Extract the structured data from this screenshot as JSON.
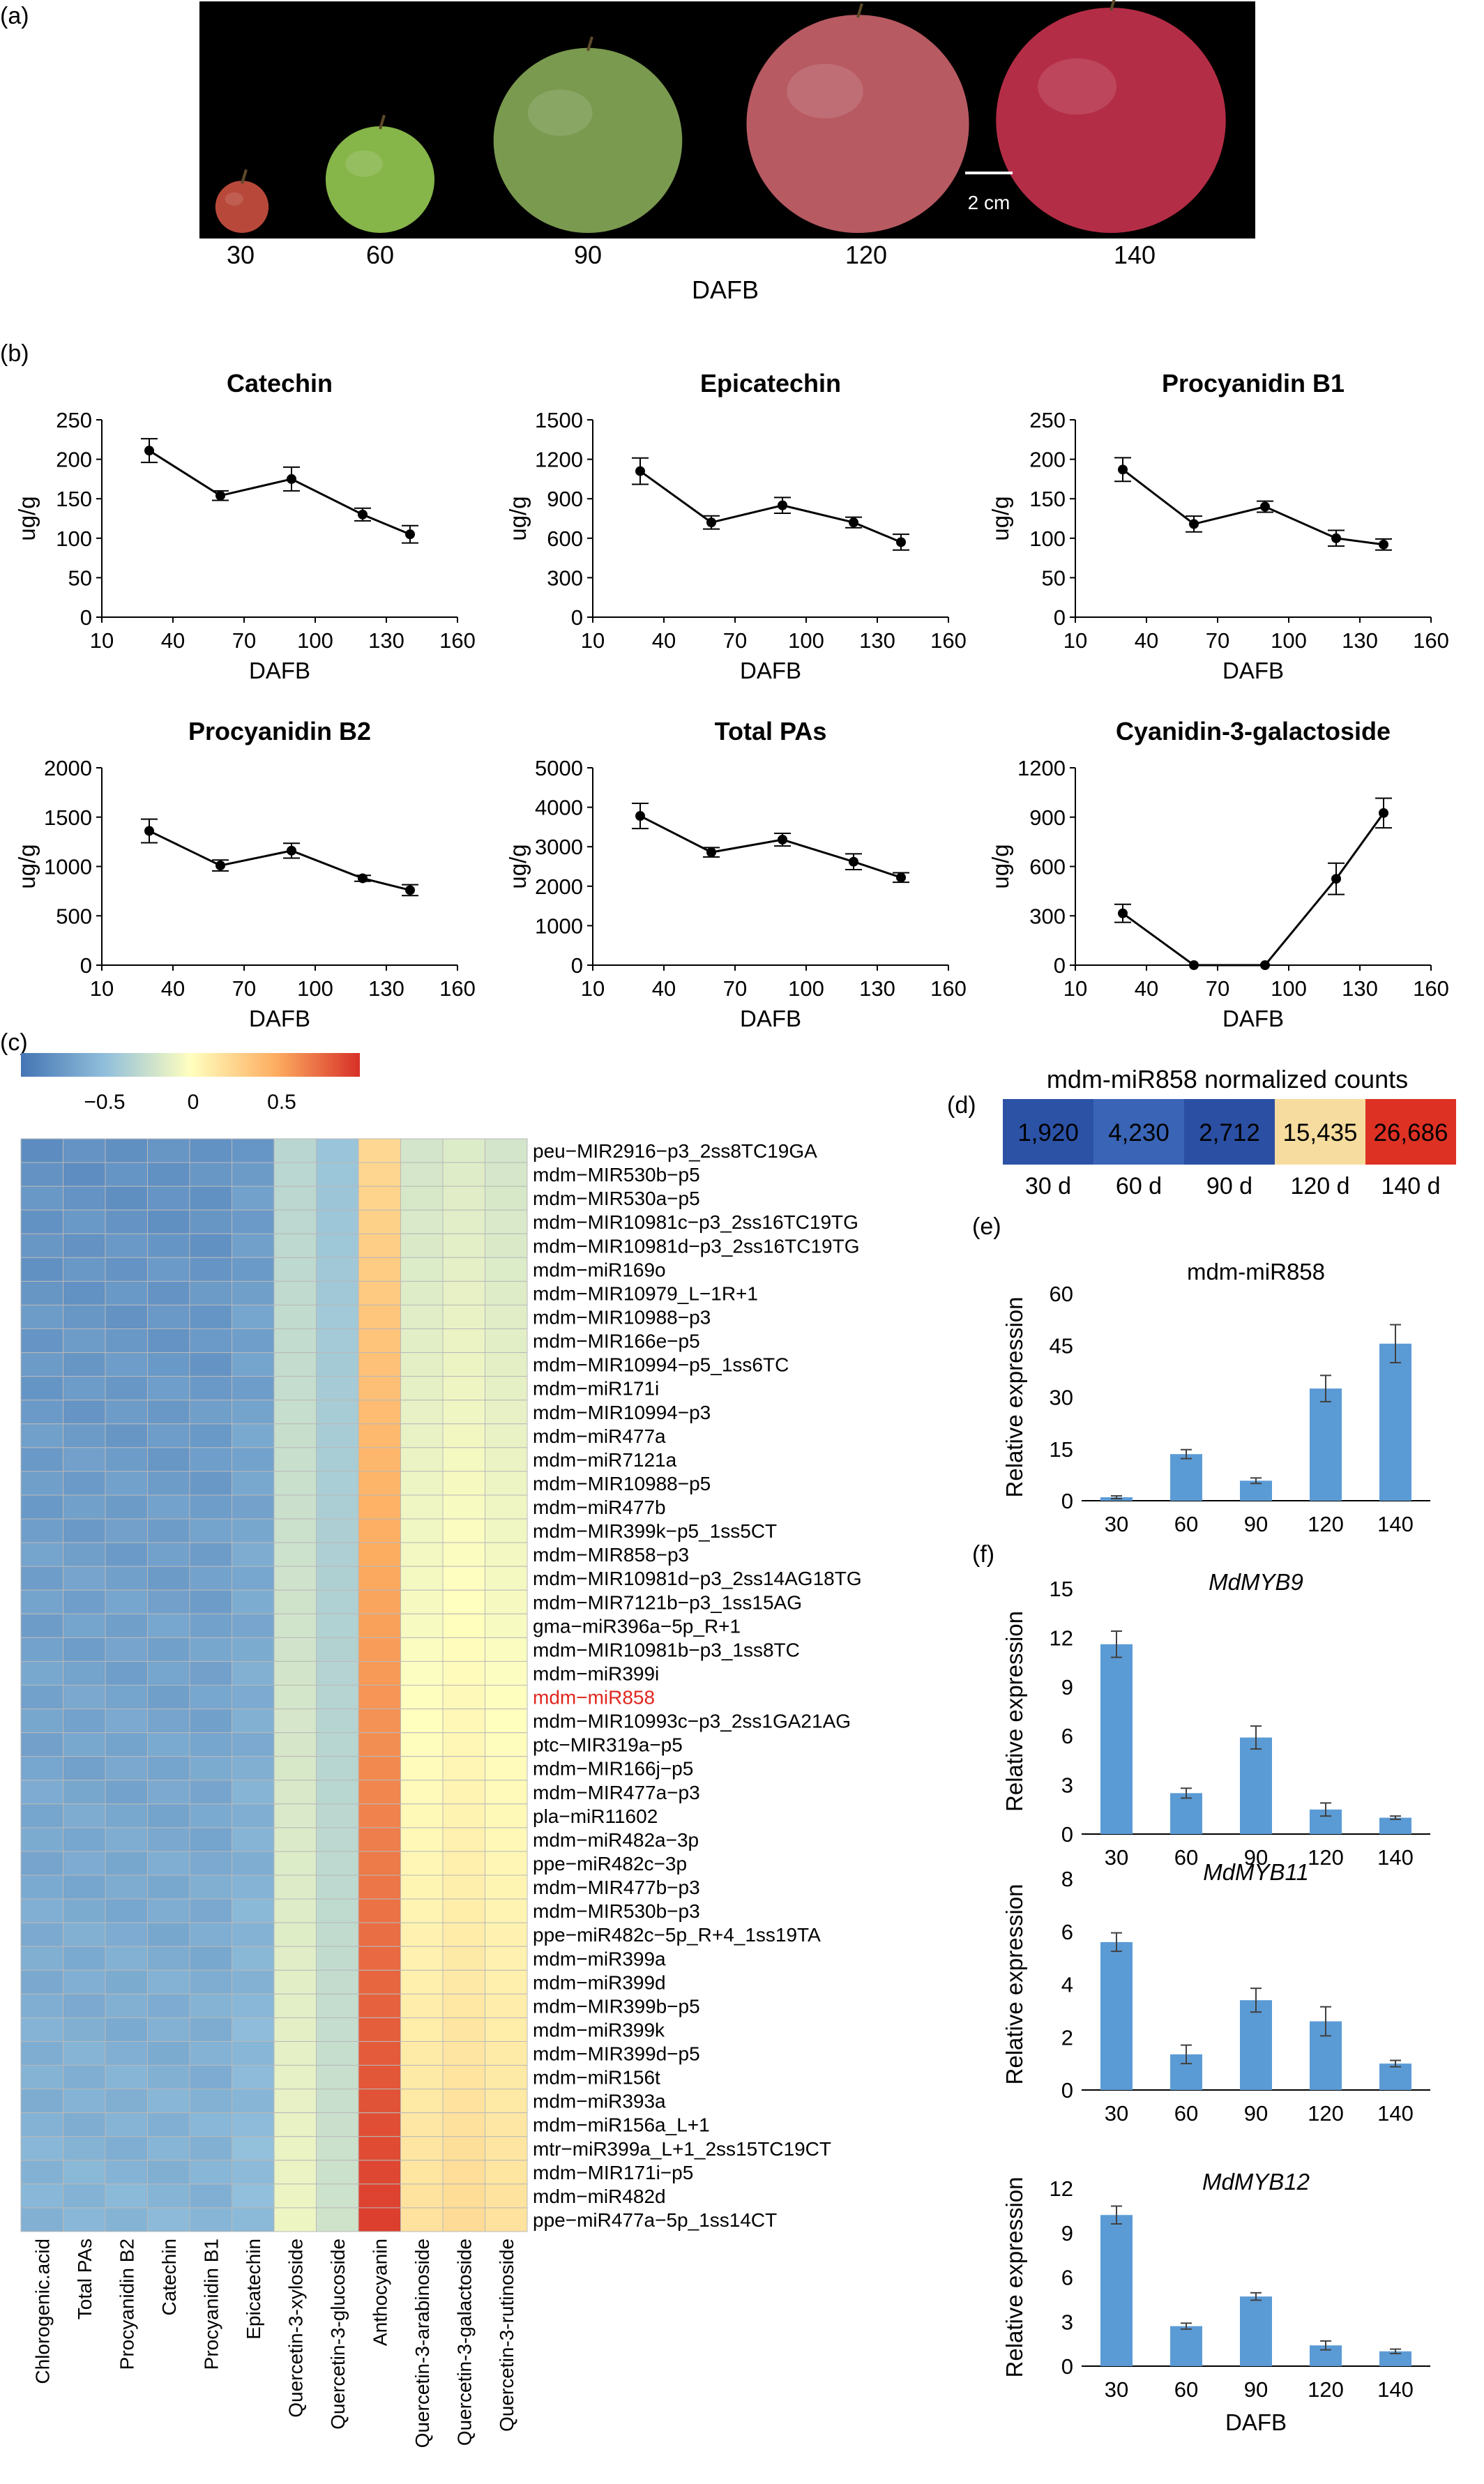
{
  "panels": {
    "a": "(a)",
    "b": "(b)",
    "c": "(c)",
    "d": "(d)",
    "e": "(e)",
    "f": "(f)"
  },
  "photo": {
    "days": [
      "30",
      "60",
      "90",
      "120",
      "140"
    ],
    "xlabel": "DAFB",
    "scale_label": "2 cm",
    "fruits": [
      {
        "name": "fruit-30",
        "color": "#b8493a",
        "size": 0.22
      },
      {
        "name": "fruit-60",
        "color": "#86b549",
        "size": 0.45
      },
      {
        "name": "fruit-90",
        "color": "#7a9a4f",
        "size": 0.78
      },
      {
        "name": "fruit-120",
        "color": "#b85a62",
        "size": 0.92
      },
      {
        "name": "fruit-140",
        "color": "#b42d46",
        "size": 0.95
      }
    ]
  },
  "chart_data": [
    {
      "type": "line",
      "title": "Catechin",
      "x": [
        30,
        60,
        90,
        120,
        140
      ],
      "y": [
        211,
        154,
        175,
        130,
        105
      ],
      "err": [
        15,
        6,
        15,
        8,
        11
      ],
      "ylim": [
        0,
        250
      ],
      "yticks": [
        0,
        50,
        100,
        150,
        200,
        250
      ],
      "xlim": [
        10,
        160
      ],
      "xticks": [
        10,
        40,
        70,
        100,
        130,
        160
      ],
      "xlabel": "DAFB",
      "ylabel": "ug/g"
    },
    {
      "type": "line",
      "title": "Epicatechin",
      "x": [
        30,
        60,
        90,
        120,
        140
      ],
      "y": [
        1110,
        720,
        850,
        720,
        570
      ],
      "err": [
        100,
        50,
        60,
        40,
        60
      ],
      "ylim": [
        0,
        1500
      ],
      "yticks": [
        0,
        300,
        600,
        900,
        1200,
        1500
      ],
      "xlim": [
        10,
        160
      ],
      "xticks": [
        10,
        40,
        70,
        100,
        130,
        160
      ],
      "xlabel": "DAFB",
      "ylabel": "ug/g"
    },
    {
      "type": "line",
      "title": "Procyanidin B1",
      "x": [
        30,
        60,
        90,
        120,
        140
      ],
      "y": [
        187,
        118,
        140,
        100,
        92
      ],
      "err": [
        15,
        10,
        7,
        10,
        7
      ],
      "ylim": [
        0,
        250
      ],
      "yticks": [
        0,
        50,
        100,
        150,
        200,
        250
      ],
      "xlim": [
        10,
        160
      ],
      "xticks": [
        10,
        40,
        70,
        100,
        130,
        160
      ],
      "xlabel": "DAFB",
      "ylabel": "ug/g"
    },
    {
      "type": "line",
      "title": "Procyanidin B2",
      "x": [
        30,
        60,
        90,
        120,
        140
      ],
      "y": [
        1360,
        1010,
        1160,
        880,
        760
      ],
      "err": [
        120,
        55,
        75,
        30,
        55
      ],
      "ylim": [
        0,
        2000
      ],
      "yticks": [
        0,
        500,
        1000,
        1500,
        2000
      ],
      "xlim": [
        10,
        160
      ],
      "xticks": [
        10,
        40,
        70,
        100,
        130,
        160
      ],
      "xlabel": "DAFB",
      "ylabel": "ug/g"
    },
    {
      "type": "line",
      "title": "Total PAs",
      "x": [
        30,
        60,
        90,
        120,
        140
      ],
      "y": [
        3780,
        2860,
        3180,
        2620,
        2220
      ],
      "err": [
        320,
        120,
        160,
        200,
        120
      ],
      "ylim": [
        0,
        5000
      ],
      "yticks": [
        0,
        1000,
        2000,
        3000,
        4000,
        5000
      ],
      "xlim": [
        10,
        160
      ],
      "xticks": [
        10,
        40,
        70,
        100,
        130,
        160
      ],
      "xlabel": "DAFB",
      "ylabel": "ug/g"
    },
    {
      "type": "line",
      "title": "Cyanidin-3-galactoside",
      "x": [
        30,
        60,
        90,
        120,
        140
      ],
      "y": [
        315,
        0,
        0,
        525,
        925
      ],
      "err": [
        55,
        0,
        0,
        95,
        90
      ],
      "ylim": [
        0,
        1200
      ],
      "yticks": [
        0,
        300,
        600,
        900,
        1200
      ],
      "xlim": [
        10,
        160
      ],
      "xticks": [
        10,
        40,
        70,
        100,
        130,
        160
      ],
      "xlabel": "DAFB",
      "ylabel": "ug/g"
    },
    {
      "type": "heatmap",
      "colorbar_ticks": [
        "−0.5",
        "0",
        "0.5"
      ],
      "columns": [
        "Chlorogenic.acid",
        "Total PAs",
        "Procyanidin B2",
        "Catechin",
        "Procyanidin B1",
        "Epicatechin",
        "Quercetin-3-xyloside",
        "Quercetin-3-glucoside",
        "Anthocyanin",
        "Quercetin-3-arabinoside",
        "Quercetin-3-galactoside",
        "Quercetin-3-rutinoside"
      ],
      "rows": [
        "peu−MIR2916−p3_2ss8TC19GA",
        "mdm−MIR530b−p5",
        "mdm−MIR530a−p5",
        "mdm−MIR10981c−p3_2ss16TC19TG",
        "mdm−MIR10981d−p3_2ss16TC19TG",
        "mdm−miR169o",
        "mdm−MIR10979_L−1R+1",
        "mdm−MIR10988−p3",
        "mdm−MIR166e−p5",
        "mdm−MIR10994−p5_1ss6TC",
        "mdm−miR171i",
        "mdm−MIR10994−p3",
        "mdm−miR477a",
        "mdm−miR7121a",
        "mdm−MIR10988−p5",
        "mdm−miR477b",
        "mdm−MIR399k−p5_1ss5CT",
        "mdm−MIR858−p3",
        "mdm−MIR10981d−p3_2ss14AG18TG",
        "mdm−MIR7121b−p3_1ss15AG",
        "gma−miR396a−5p_R+1",
        "mdm−MIR10981b−p3_1ss8TC",
        "mdm−miR399i",
        "mdm−miR858",
        "mdm−MIR10993c−p3_2ss1GA21AG",
        "ptc−MIR319a−p5",
        "mdm−MIR166j−p5",
        "mdm−MIR477a−p3",
        "pla−miR11602",
        "mdm−miR482a−3p",
        "ppe−miR482c−3p",
        "mdm−MIR477b−p3",
        "mdm−MIR530b−p3",
        "ppe−miR482c−5p_R+4_1ss19TA",
        "mdm−miR399a",
        "mdm−miR399d",
        "mdm−MIR399b−p5",
        "mdm−miR399k",
        "mdm−MIR399d−p5",
        "mdm−miR156t",
        "mdm−miR393a",
        "mdm−miR156a_L+1",
        "mtr−miR399a_L+1_2ss15TC19CT",
        "mdm−MIR171i−p5",
        "mdm−miR482d",
        "ppe−miR477a−5p_1ss14CT"
      ],
      "highlight_row": "mdm−miR858",
      "highlight_color": "#e0271e"
    },
    {
      "type": "table",
      "title": "mdm-miR858 normalized counts",
      "values": [
        "1,920",
        "4,230",
        "2,712",
        "15,435",
        "26,686"
      ],
      "labels": [
        "30 d",
        "60 d",
        "90 d",
        "120 d",
        "140 d"
      ],
      "colors": [
        "#2c52a6",
        "#3a64b5",
        "#2b4fa3",
        "#f6dc9e",
        "#dd3124"
      ]
    },
    {
      "type": "bar",
      "title": "mdm-miR858",
      "categories": [
        "30",
        "60",
        "90",
        "120",
        "140"
      ],
      "values": [
        1,
        13.5,
        5.8,
        32.5,
        45.5
      ],
      "err": [
        0.4,
        1.3,
        0.8,
        3.8,
        5.5
      ],
      "ylim": [
        0,
        60
      ],
      "yticks": [
        0,
        15,
        30,
        45,
        60
      ],
      "ylabel": "Relative expression"
    },
    {
      "type": "bar",
      "title": "MdMYB9",
      "categories": [
        "30",
        "60",
        "90",
        "120",
        "140"
      ],
      "values": [
        11.6,
        2.5,
        5.9,
        1.5,
        1.0
      ],
      "err": [
        0.8,
        0.3,
        0.7,
        0.4,
        0.1
      ],
      "ylim": [
        0,
        15
      ],
      "yticks": [
        0,
        3,
        6,
        9,
        12,
        15
      ],
      "ylabel": "Relative expression"
    },
    {
      "type": "bar",
      "title": "MdMYB11",
      "categories": [
        "30",
        "60",
        "90",
        "120",
        "140"
      ],
      "values": [
        5.6,
        1.35,
        3.4,
        2.6,
        1.0
      ],
      "err": [
        0.35,
        0.35,
        0.45,
        0.55,
        0.12
      ],
      "ylim": [
        0,
        8
      ],
      "yticks": [
        0,
        2,
        4,
        6,
        8
      ],
      "ylabel": "Relative expression"
    },
    {
      "type": "bar",
      "title": "MdMYB12",
      "categories": [
        "30",
        "60",
        "90",
        "120",
        "140"
      ],
      "values": [
        10.2,
        2.7,
        4.7,
        1.4,
        1.0
      ],
      "err": [
        0.6,
        0.2,
        0.25,
        0.3,
        0.15
      ],
      "ylim": [
        0,
        12
      ],
      "yticks": [
        0,
        3,
        6,
        9,
        12
      ],
      "ylabel": "Relative expression",
      "xlabel": "DAFB"
    }
  ]
}
